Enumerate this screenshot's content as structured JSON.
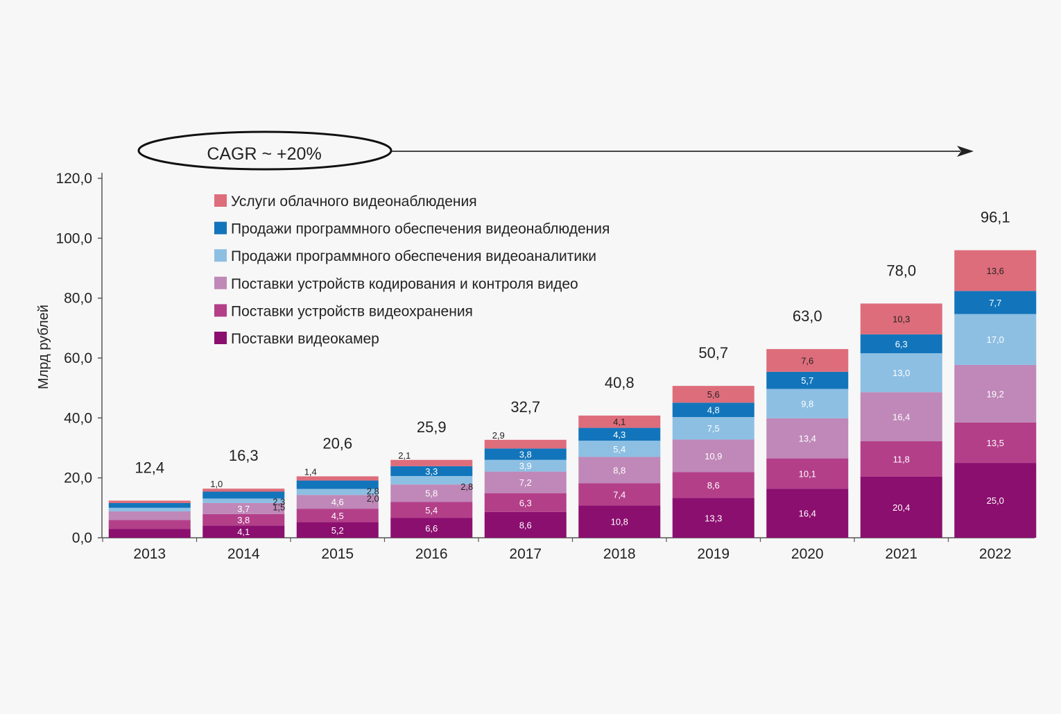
{
  "chart_data": {
    "type": "bar",
    "stacked": true,
    "ylabel": "Млрд рублей",
    "ylim": [
      0,
      120
    ],
    "yticks": [
      "0,0",
      "20,0",
      "40,0",
      "60,0",
      "80,0",
      "100,0",
      "120,0"
    ],
    "ytick_values": [
      0,
      20,
      40,
      60,
      80,
      100,
      120
    ],
    "categories": [
      "2013",
      "2014",
      "2015",
      "2016",
      "2017",
      "2018",
      "2019",
      "2020",
      "2021",
      "2022"
    ],
    "totals": [
      "12,4",
      "16,3",
      "20,6",
      "25,9",
      "32,7",
      "40,8",
      "50,7",
      "63,0",
      "78,0",
      "96,1"
    ],
    "annotation": "CAGR ~ +20%",
    "legend_placement": "top-left",
    "series": [
      {
        "name": "Поставки видеокамер",
        "color": "#8b0f6f",
        "label_color": "#ffffff",
        "values": [
          2.9,
          4.1,
          5.2,
          6.6,
          8.6,
          10.8,
          13.3,
          16.4,
          20.4,
          25.0
        ],
        "labels": [
          "",
          "4,1",
          "5,2",
          "6,6",
          "8,6",
          "10,8",
          "13,3",
          "16,4",
          "20,4",
          "25,0"
        ]
      },
      {
        "name": "Поставки устройств видеохранения",
        "color": "#b33f89",
        "label_color": "#ffffff",
        "values": [
          3.0,
          3.8,
          4.5,
          5.4,
          6.3,
          7.4,
          8.6,
          10.1,
          11.8,
          13.5
        ],
        "labels": [
          "",
          "3,8",
          "4,5",
          "5,4",
          "6,3",
          "7,4",
          "8,6",
          "10,1",
          "11,8",
          "13,5"
        ]
      },
      {
        "name": "Поставки устройств кодирования и контроля видео",
        "color": "#bf88b8",
        "label_color": "#ffffff",
        "values": [
          2.9,
          3.7,
          4.6,
          5.8,
          7.2,
          8.8,
          10.9,
          13.4,
          16.4,
          19.2
        ],
        "labels": [
          "",
          "3,7",
          "4,6",
          "5,8",
          "7,2",
          "8,8",
          "10,9",
          "13,4",
          "16,4",
          "19,2"
        ]
      },
      {
        "name": "Продажи программного обеспечения видеоаналитики",
        "color": "#8dbfe3",
        "label_color": "#ffffff",
        "values": [
          1.2,
          1.5,
          2.0,
          2.8,
          3.9,
          5.4,
          7.5,
          9.8,
          13.0,
          17.0
        ],
        "labels": [
          "",
          "1,5",
          "2,0",
          "2,8",
          "3,9",
          "5,4",
          "7,5",
          "9,8",
          "13,0",
          "17,0"
        ]
      },
      {
        "name": "Продажи программного обеспечения видеонаблюдения",
        "color": "#1275bb",
        "label_color": "#ffffff",
        "values": [
          1.6,
          2.3,
          2.8,
          3.3,
          3.8,
          4.3,
          4.8,
          5.7,
          6.3,
          7.7
        ],
        "labels": [
          "",
          "2,3",
          "2,8",
          "3,3",
          "3,8",
          "4,3",
          "4,8",
          "5,7",
          "6,3",
          "7,7"
        ]
      },
      {
        "name": "Услуги облачного видеонаблюдения",
        "color": "#de6d7b",
        "label_color": "#222222",
        "values": [
          0.8,
          1.0,
          1.4,
          2.1,
          2.9,
          4.1,
          5.6,
          7.6,
          10.3,
          13.6
        ],
        "labels": [
          "",
          "1,0",
          "1,4",
          "2,1",
          "2,9",
          "4,1",
          "5,6",
          "7,6",
          "10,3",
          "13,6"
        ]
      }
    ]
  }
}
